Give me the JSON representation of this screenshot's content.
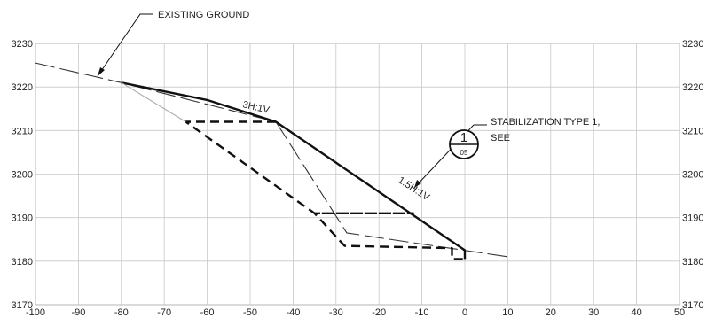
{
  "chart_data": {
    "type": "line",
    "title": "",
    "xlabel": "",
    "ylabel": "",
    "xlim": [
      -100,
      50
    ],
    "ylim": [
      3170,
      3230
    ],
    "x_ticks": [
      -100,
      -90,
      -80,
      -70,
      -60,
      -50,
      -40,
      -30,
      -20,
      -10,
      0,
      10,
      20,
      30,
      40,
      50
    ],
    "y_ticks": [
      3170,
      3180,
      3190,
      3200,
      3210,
      3220,
      3230
    ],
    "grid": true,
    "series": [
      {
        "name": "existing_ground",
        "style": "long-dash thin",
        "points": [
          [
            -100,
            3225.5
          ],
          [
            -80,
            3221
          ],
          [
            -44,
            3212
          ],
          [
            -27.5,
            3186.5
          ],
          [
            10,
            3181
          ]
        ]
      },
      {
        "name": "proposed_grade",
        "style": "solid bold",
        "points": [
          [
            -80,
            3221
          ],
          [
            -60,
            3217
          ],
          [
            -44,
            3212
          ],
          [
            0,
            3182.5
          ],
          [
            0,
            3180.5
          ]
        ]
      },
      {
        "name": "excavation_limit",
        "style": "short-dash bold",
        "points": [
          [
            -44,
            3212
          ],
          [
            -65,
            3212
          ],
          [
            -35,
            3191
          ],
          [
            -12,
            3191
          ],
          [
            -35,
            3191
          ],
          [
            -28,
            3183.5
          ],
          [
            -3,
            3183
          ],
          [
            -3,
            3180.5
          ],
          [
            0,
            3180.5
          ]
        ]
      },
      {
        "name": "transition",
        "style": "solid thin gray",
        "points": [
          [
            -80,
            3221
          ],
          [
            -65,
            3212
          ]
        ]
      }
    ],
    "annotations": [
      {
        "text": "EXISTING GROUND",
        "leader_to": [
          -88,
          3223
        ]
      },
      {
        "text": "3H:1V",
        "at": [
          -52,
          3214
        ],
        "angle_deg": 13
      },
      {
        "text": "1.5H:1V",
        "at": [
          -15,
          3193
        ],
        "angle_deg": 33
      },
      {
        "text": "STABILIZATION TYPE 1,",
        "line2": "SEE",
        "leader_to": [
          -17.5,
          3200
        ]
      }
    ],
    "detail_callout": {
      "number": "1",
      "sheet": "05"
    }
  },
  "annotations_text": {
    "existing_ground": "EXISTING GROUND",
    "slope_3h": "3H:1V",
    "slope_15h": "1.5H:1V",
    "stabilization_line1": "STABILIZATION TYPE 1,",
    "stabilization_line2": "SEE",
    "detail_number": "1",
    "detail_sheet": "05"
  }
}
